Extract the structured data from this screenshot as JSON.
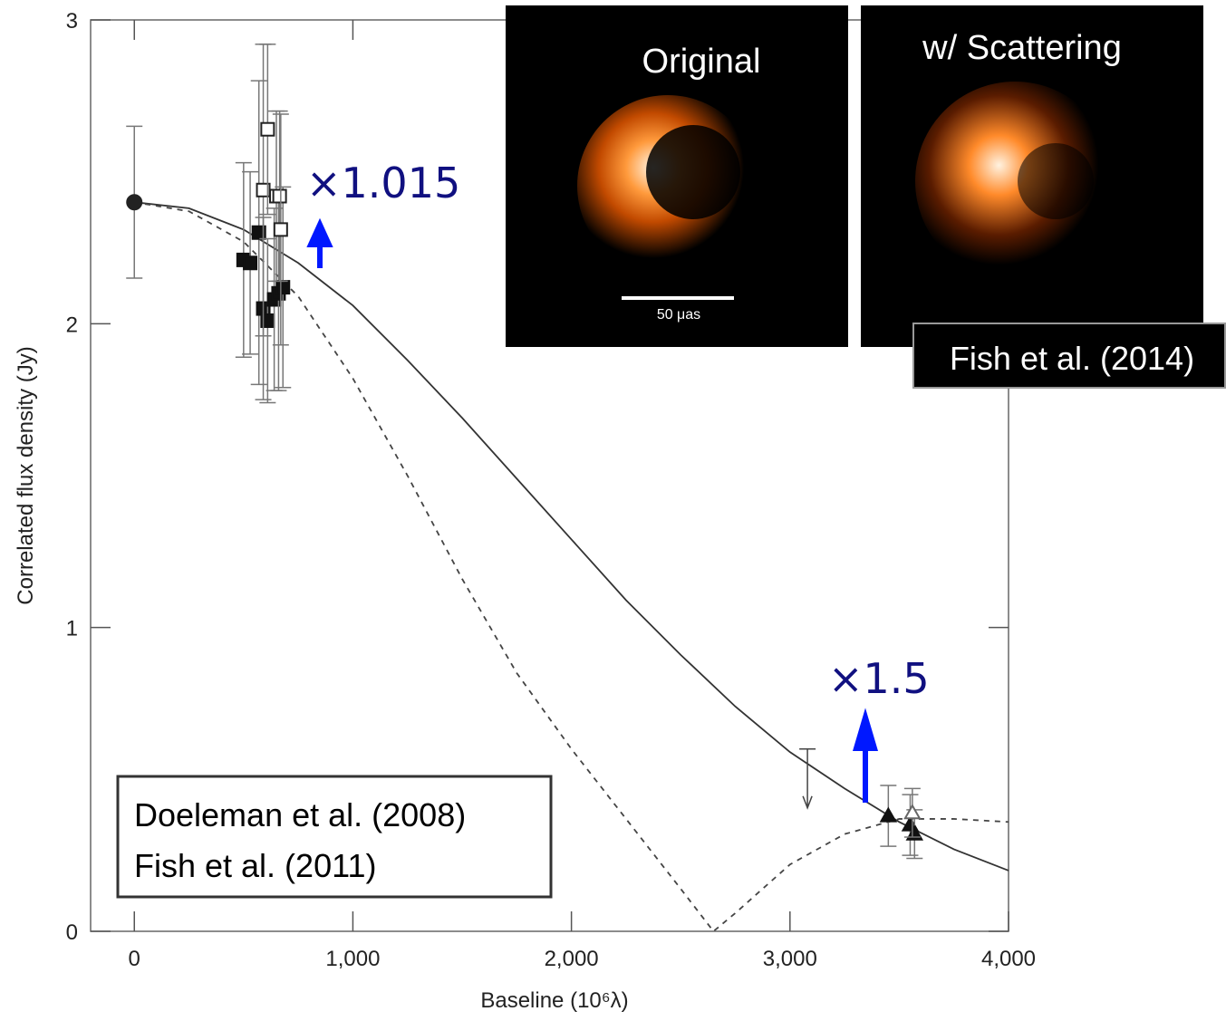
{
  "chart_data": {
    "type": "scatter",
    "xlabel": "Baseline (10⁶λ)",
    "ylabel": "Correlated flux density (Jy)",
    "xlim": [
      -200,
      4000
    ],
    "ylim": [
      0,
      3
    ],
    "xticks": [
      0,
      {
        "value": 1000,
        "label": "1,000"
      },
      {
        "value": 2000,
        "label": "2,000"
      },
      {
        "value": 3000,
        "label": "3,000"
      },
      {
        "value": 4000,
        "label": "4,000"
      }
    ],
    "yticks": [
      0,
      1,
      2,
      3
    ],
    "series": [
      {
        "marker": "circle",
        "filled": true,
        "color": "#222222",
        "x": [
          0
        ],
        "values": [
          2.4
        ],
        "errors": [
          0.25
        ]
      },
      {
        "marker": "square",
        "filled": true,
        "color": "#111111",
        "x": [
          500,
          530,
          570,
          590,
          610,
          640,
          660,
          680
        ],
        "values": [
          2.21,
          2.2,
          2.3,
          2.05,
          2.01,
          2.08,
          2.1,
          2.12
        ],
        "errors": [
          0.32,
          0.3,
          0.5,
          0.3,
          0.27,
          0.3,
          0.32,
          0.33
        ]
      },
      {
        "marker": "square",
        "filled": false,
        "color": "#222222",
        "x": [
          590,
          610,
          650,
          665,
          670
        ],
        "values": [
          2.44,
          2.64,
          2.42,
          2.42,
          2.31
        ],
        "errors": [
          0.48,
          0.28,
          0.28,
          0.28,
          0.38
        ]
      },
      {
        "marker": "triangle",
        "filled": true,
        "color": "#111111",
        "x": [
          3450,
          3550,
          3570
        ],
        "values": [
          0.38,
          0.35,
          0.32
        ],
        "errors": [
          0.1,
          0.1,
          0.08
        ]
      },
      {
        "marker": "triangle",
        "filled": false,
        "color": "#666666",
        "x": [
          3560
        ],
        "values": [
          0.39
        ],
        "errors": [
          0.08
        ]
      },
      {
        "marker": "upper-limit",
        "color": "#444444",
        "x": [
          3080
        ],
        "values": [
          0.6
        ]
      }
    ],
    "curves": [
      {
        "style": "solid",
        "color": "#333333",
        "x": [
          0,
          250,
          500,
          750,
          1000,
          1250,
          1500,
          1750,
          2000,
          2250,
          2500,
          2750,
          3000,
          3250,
          3500,
          3750,
          4000
        ],
        "values": [
          2.4,
          2.38,
          2.31,
          2.2,
          2.06,
          1.88,
          1.69,
          1.49,
          1.29,
          1.09,
          0.91,
          0.74,
          0.59,
          0.47,
          0.36,
          0.27,
          0.2
        ]
      },
      {
        "style": "dashed",
        "color": "#444444",
        "x": [
          0,
          250,
          500,
          750,
          1000,
          1250,
          1500,
          1750,
          2000,
          2250,
          2500,
          2650,
          2750,
          3000,
          3250,
          3500,
          3750,
          4000
        ],
        "values": [
          2.4,
          2.37,
          2.27,
          2.09,
          1.82,
          1.5,
          1.16,
          0.85,
          0.6,
          0.37,
          0.14,
          0,
          0.06,
          0.22,
          0.32,
          0.37,
          0.37,
          0.36
        ]
      }
    ],
    "annotations": {
      "factor_1": "×1.015",
      "factor_2": "×1.5",
      "legend_box": [
        "Doeleman et al. (2008)",
        "Fish et al. (2011)"
      ],
      "image_1_title": "Original",
      "image_2_title": "w/ Scattering",
      "scale_bar": "50 μas",
      "image_credit": "Fish et al. (2014)"
    }
  }
}
